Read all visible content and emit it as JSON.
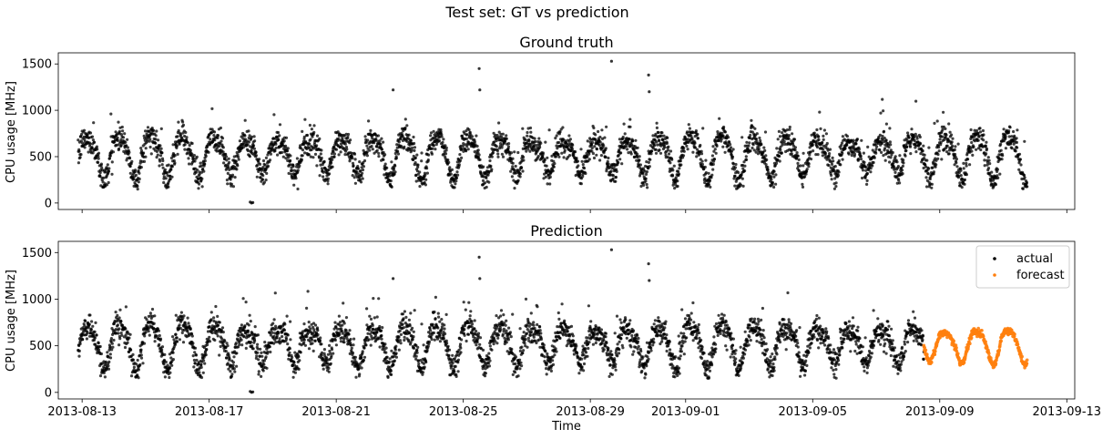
{
  "figure": {
    "suptitle": "Test set: GT vs prediction"
  },
  "chart_data": [
    {
      "type": "scatter",
      "title": "Ground truth",
      "xlabel": "",
      "ylabel": "CPU usage [MHz]",
      "xlim": [
        "2013-08-12T06:00",
        "2013-09-13T06:00"
      ],
      "ylim": [
        -70,
        1620
      ],
      "xticks": [
        "2013-08-13",
        "2013-08-17",
        "2013-08-21",
        "2013-08-25",
        "2013-08-29",
        "2013-09-01",
        "2013-09-05",
        "2013-09-09",
        "2013-09-13"
      ],
      "xtick_labels_visible": false,
      "yticks": [
        0,
        500,
        1000,
        1500
      ],
      "series": [
        {
          "color": "#000000",
          "marker": "dot",
          "data_range": [
            "2013-08-12T21:00",
            "2013-09-11T18:00"
          ],
          "pattern": "daily cycle, ~250-800 MHz",
          "outliers": [
            {
              "x": "2013-08-18T07:00",
              "y": 10
            },
            {
              "x": "2013-08-18T08:00",
              "y": 0
            },
            {
              "x": "2013-08-18T09:00",
              "y": 5
            },
            {
              "x": "2013-08-22T19:00",
              "y": 1220
            },
            {
              "x": "2013-08-25T12:00",
              "y": 1450
            },
            {
              "x": "2013-08-25T12:30",
              "y": 1220
            },
            {
              "x": "2013-08-29T16:00",
              "y": 1530
            },
            {
              "x": "2013-08-30T20:00",
              "y": 1380
            },
            {
              "x": "2013-08-30T20:30",
              "y": 1200
            }
          ]
        }
      ]
    },
    {
      "type": "scatter",
      "title": "Prediction",
      "xlabel": "Time",
      "ylabel": "CPU usage [MHz]",
      "xlim": [
        "2013-08-12T06:00",
        "2013-09-13T06:00"
      ],
      "ylim": [
        -70,
        1620
      ],
      "xticks": [
        "2013-08-13",
        "2013-08-17",
        "2013-08-21",
        "2013-08-25",
        "2013-08-29",
        "2013-09-01",
        "2013-09-05",
        "2013-09-09",
        "2013-09-13"
      ],
      "yticks": [
        0,
        500,
        1000,
        1500
      ],
      "legend": {
        "placement": "top-right",
        "entries": [
          {
            "label": "actual",
            "color": "#000000"
          },
          {
            "label": "forecast",
            "color": "#ff7f0e"
          }
        ]
      },
      "series": [
        {
          "name": "actual",
          "color": "#000000",
          "data_range": [
            "2013-08-12T21:00",
            "2013-09-08T12:00"
          ],
          "pattern": "daily cycle, ~250-800 MHz"
        },
        {
          "name": "forecast",
          "color": "#ff7f0e",
          "data_range": [
            "2013-09-08T12:00",
            "2013-09-11T18:00"
          ],
          "pattern": "daily cycle, ~320-700 MHz"
        }
      ]
    }
  ]
}
